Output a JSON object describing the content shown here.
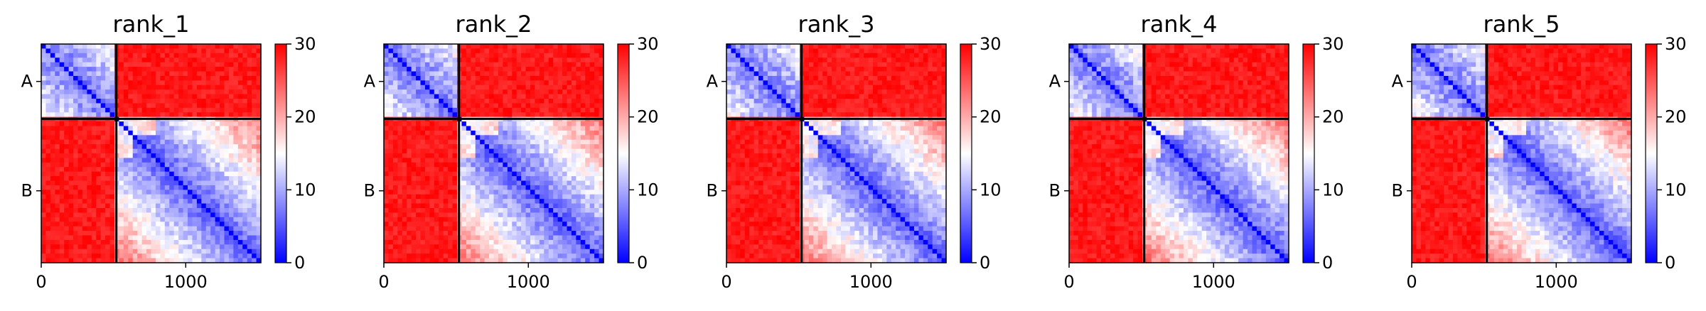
{
  "chart_data": [
    {
      "type": "heatmap",
      "title": "rank_1",
      "x_ticks": [
        "0",
        "1000"
      ],
      "x_tick_values": [
        0,
        1000
      ],
      "y_ticks": [
        "A",
        "B"
      ],
      "chains": [
        {
          "name": "A",
          "start": 0,
          "end": 520
        },
        {
          "name": "B",
          "start": 520,
          "end": 1520
        }
      ],
      "xlim": [
        0,
        1520
      ],
      "ylim": [
        1520,
        0
      ],
      "colorbar": {
        "ticks": [
          "0",
          "10",
          "20",
          "30"
        ],
        "tick_values": [
          0,
          10,
          20,
          30
        ],
        "vmin": 0,
        "vmax": 30,
        "colormap": "bwr"
      },
      "chain_boundary": 520
    },
    {
      "type": "heatmap",
      "title": "rank_2",
      "x_ticks": [
        "0",
        "1000"
      ],
      "x_tick_values": [
        0,
        1000
      ],
      "y_ticks": [
        "A",
        "B"
      ],
      "chains": [
        {
          "name": "A",
          "start": 0,
          "end": 520
        },
        {
          "name": "B",
          "start": 520,
          "end": 1520
        }
      ],
      "xlim": [
        0,
        1520
      ],
      "ylim": [
        1520,
        0
      ],
      "colorbar": {
        "ticks": [
          "0",
          "10",
          "20",
          "30"
        ],
        "tick_values": [
          0,
          10,
          20,
          30
        ],
        "vmin": 0,
        "vmax": 30,
        "colormap": "bwr"
      },
      "chain_boundary": 520
    },
    {
      "type": "heatmap",
      "title": "rank_3",
      "x_ticks": [
        "0",
        "1000"
      ],
      "x_tick_values": [
        0,
        1000
      ],
      "y_ticks": [
        "A",
        "B"
      ],
      "chains": [
        {
          "name": "A",
          "start": 0,
          "end": 520
        },
        {
          "name": "B",
          "start": 520,
          "end": 1520
        }
      ],
      "xlim": [
        0,
        1520
      ],
      "ylim": [
        1520,
        0
      ],
      "colorbar": {
        "ticks": [
          "0",
          "10",
          "20",
          "30"
        ],
        "tick_values": [
          0,
          10,
          20,
          30
        ],
        "vmin": 0,
        "vmax": 30,
        "colormap": "bwr"
      },
      "chain_boundary": 520
    },
    {
      "type": "heatmap",
      "title": "rank_4",
      "x_ticks": [
        "0",
        "1000"
      ],
      "x_tick_values": [
        0,
        1000
      ],
      "y_ticks": [
        "A",
        "B"
      ],
      "chains": [
        {
          "name": "A",
          "start": 0,
          "end": 520
        },
        {
          "name": "B",
          "start": 520,
          "end": 1520
        }
      ],
      "xlim": [
        0,
        1520
      ],
      "ylim": [
        1520,
        0
      ],
      "colorbar": {
        "ticks": [
          "0",
          "10",
          "20",
          "30"
        ],
        "tick_values": [
          0,
          10,
          20,
          30
        ],
        "vmin": 0,
        "vmax": 30,
        "colormap": "bwr"
      },
      "chain_boundary": 520
    },
    {
      "type": "heatmap",
      "title": "rank_5",
      "x_ticks": [
        "0",
        "1000"
      ],
      "x_tick_values": [
        0,
        1000
      ],
      "y_ticks": [
        "A",
        "B"
      ],
      "chains": [
        {
          "name": "A",
          "start": 0,
          "end": 520
        },
        {
          "name": "B",
          "start": 520,
          "end": 1520
        }
      ],
      "xlim": [
        0,
        1520
      ],
      "ylim": [
        1520,
        0
      ],
      "colorbar": {
        "ticks": [
          "0",
          "10",
          "20",
          "30"
        ],
        "tick_values": [
          0,
          10,
          20,
          30
        ],
        "vmin": 0,
        "vmax": 30,
        "colormap": "bwr"
      },
      "chain_boundary": 520
    }
  ],
  "colors": {
    "high": "#ff0000",
    "mid": "#ffffff",
    "low": "#0000ff",
    "boundary": "#000000"
  }
}
